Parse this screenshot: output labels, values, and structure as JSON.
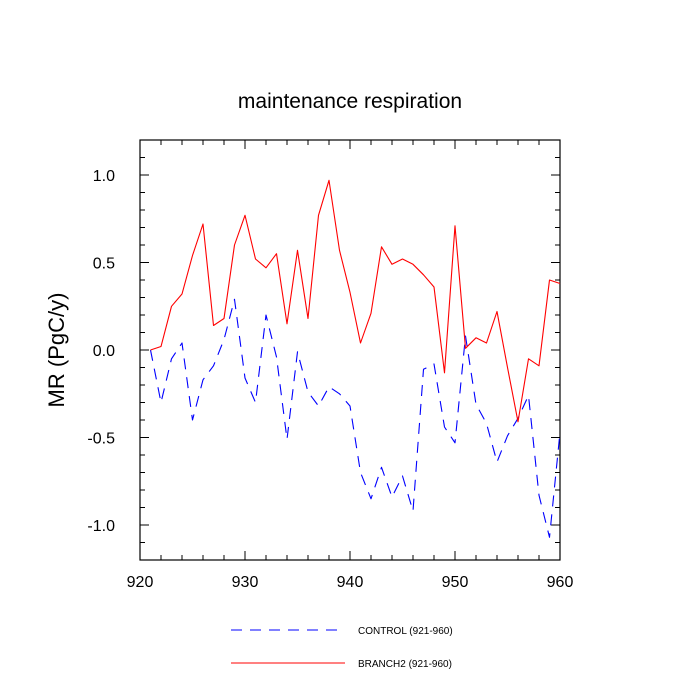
{
  "chart_data": {
    "type": "line",
    "title": "maintenance respiration",
    "xlabel": "",
    "ylabel": "MR  (PgC/y)",
    "xlim": [
      921,
      960
    ],
    "ylim": [
      -1.2,
      1.2
    ],
    "xticks": [
      920,
      930,
      940,
      950,
      960
    ],
    "xtick_labels": [
      "920",
      "930",
      "940",
      "950",
      "960"
    ],
    "yticks": [
      -1.0,
      -0.5,
      0.0,
      0.5,
      1.0
    ],
    "ytick_labels": [
      "-1.0",
      "-0.5",
      "0.0",
      "0.5",
      "1.0"
    ],
    "grid": false,
    "legend_position": "bottom",
    "x": [
      921,
      922,
      923,
      924,
      925,
      926,
      927,
      928,
      929,
      930,
      931,
      932,
      933,
      934,
      935,
      936,
      937,
      938,
      939,
      940,
      941,
      942,
      943,
      944,
      945,
      946,
      947,
      948,
      949,
      950,
      951,
      952,
      953,
      954,
      955,
      956,
      957,
      958,
      959,
      960
    ],
    "series": [
      {
        "name": "CONTROL (921-960)",
        "color": "#0000ff",
        "dash": "dashed",
        "values": [
          0.0,
          -0.3,
          -0.05,
          0.04,
          -0.4,
          -0.17,
          -0.09,
          0.06,
          0.29,
          -0.16,
          -0.3,
          0.2,
          -0.04,
          -0.51,
          -0.01,
          -0.24,
          -0.32,
          -0.21,
          -0.25,
          -0.32,
          -0.7,
          -0.85,
          -0.67,
          -0.84,
          -0.72,
          -0.92,
          -0.11,
          -0.08,
          -0.44,
          -0.53,
          0.08,
          -0.31,
          -0.42,
          -0.64,
          -0.49,
          -0.39,
          -0.26,
          -0.83,
          -1.07,
          -0.47
        ]
      },
      {
        "name": "BRANCH2 (921-960)",
        "color": "#ff0000",
        "dash": "solid",
        "values": [
          0.0,
          0.02,
          0.25,
          0.32,
          0.54,
          0.72,
          0.14,
          0.18,
          0.6,
          0.77,
          0.52,
          0.47,
          0.55,
          0.15,
          0.57,
          0.18,
          0.77,
          0.97,
          0.57,
          0.33,
          0.04,
          0.21,
          0.59,
          0.49,
          0.52,
          0.49,
          0.43,
          0.36,
          -0.13,
          0.71,
          0.01,
          0.07,
          0.04,
          0.22,
          -0.1,
          -0.41,
          -0.05,
          -0.09,
          0.4,
          0.38
        ]
      }
    ]
  }
}
